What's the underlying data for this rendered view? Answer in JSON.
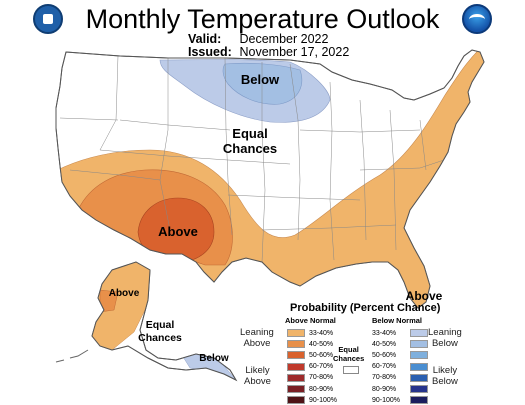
{
  "header": {
    "title": "Monthly Temperature Outlook",
    "valid_label": "Valid:",
    "valid_value": "December 2022",
    "issued_label": "Issued:",
    "issued_value": "November 17, 2022"
  },
  "map_labels": {
    "below_north": "Below",
    "equal_chances_line1": "Equal",
    "equal_chances_line2": "Chances",
    "above_southwest": "Above",
    "above_florida": "Above",
    "above_alaska": "Above",
    "alaska_equal_line1": "Equal",
    "alaska_equal_line2": "Chances",
    "below_alaska": "Below"
  },
  "legend": {
    "title": "Probability (Percent Chance)",
    "above_heading": "Above Normal",
    "below_heading": "Below Normal",
    "leaning_above_1": "Leaning",
    "leaning_above_2": "Above",
    "likely_above_1": "Likely",
    "likely_above_2": "Above",
    "leaning_below_1": "Leaning",
    "leaning_below_2": "Below",
    "likely_below_1": "Likely",
    "likely_below_2": "Below",
    "equal_1": "Equal",
    "equal_2": "Chances",
    "above_ranges": [
      "33-40%",
      "40-50%",
      "50-60%",
      "60-70%",
      "70-80%",
      "80-90%",
      "90-100%"
    ],
    "below_ranges": [
      "33-40%",
      "40-50%",
      "50-60%",
      "60-70%",
      "70-80%",
      "80-90%",
      "90-100%"
    ],
    "above_colors": [
      "#f0b46a",
      "#e8904a",
      "#d9622e",
      "#c0392b",
      "#9e2a2b",
      "#7a1f24",
      "#4e1316"
    ],
    "below_colors": [
      "#bccbe8",
      "#a3bfe3",
      "#7fb0dd",
      "#4a8ed1",
      "#2a5fb0",
      "#26348c",
      "#1b1e5e"
    ]
  },
  "colors": {
    "above_33_40": "#f0b46a",
    "above_40_50": "#e8904a",
    "above_50_60": "#d9622e",
    "below_33_40": "#bccbe8",
    "below_40_50": "#a3bfe3"
  }
}
